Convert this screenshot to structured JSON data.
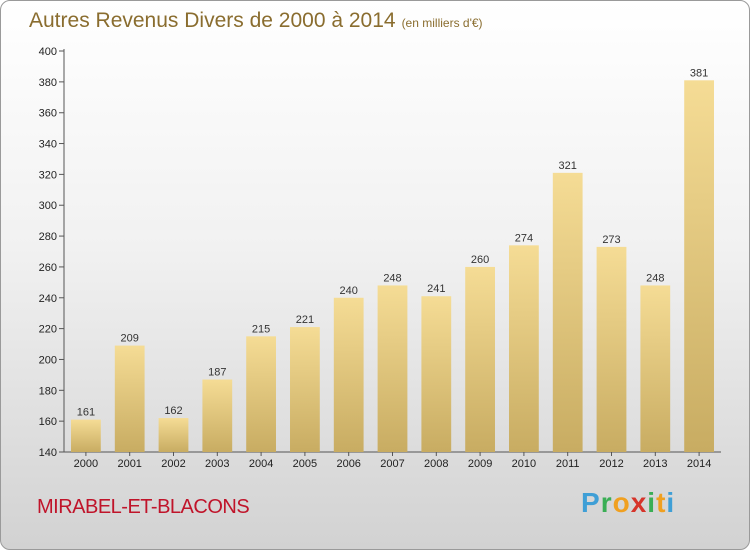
{
  "title": "Autres Revenus Divers de 2000 à 2014",
  "title_unit": "(en milliers d'€)",
  "commune": "MIRABEL-ET-BLACONS",
  "logo": {
    "p": "P",
    "r": "r",
    "o": "o",
    "x": "x",
    "i1": "i",
    "t": "t",
    "i2": "i"
  },
  "colors": {
    "bar_top": "#f5dc95",
    "bar_bottom": "#c8ac62",
    "title": "#8a6d2f",
    "commune": "#c0142a"
  },
  "chart_data": {
    "type": "bar",
    "categories": [
      "2000",
      "2001",
      "2002",
      "2003",
      "2004",
      "2005",
      "2006",
      "2007",
      "2008",
      "2009",
      "2010",
      "2011",
      "2012",
      "2013",
      "2014"
    ],
    "values": [
      161,
      209,
      162,
      187,
      215,
      221,
      240,
      248,
      241,
      260,
      274,
      321,
      273,
      248,
      381
    ],
    "ylim": [
      140,
      400
    ],
    "yticks": [
      140,
      160,
      180,
      200,
      220,
      240,
      260,
      280,
      300,
      320,
      340,
      360,
      380,
      400
    ],
    "grid": false,
    "xlabel": "",
    "ylabel": ""
  }
}
